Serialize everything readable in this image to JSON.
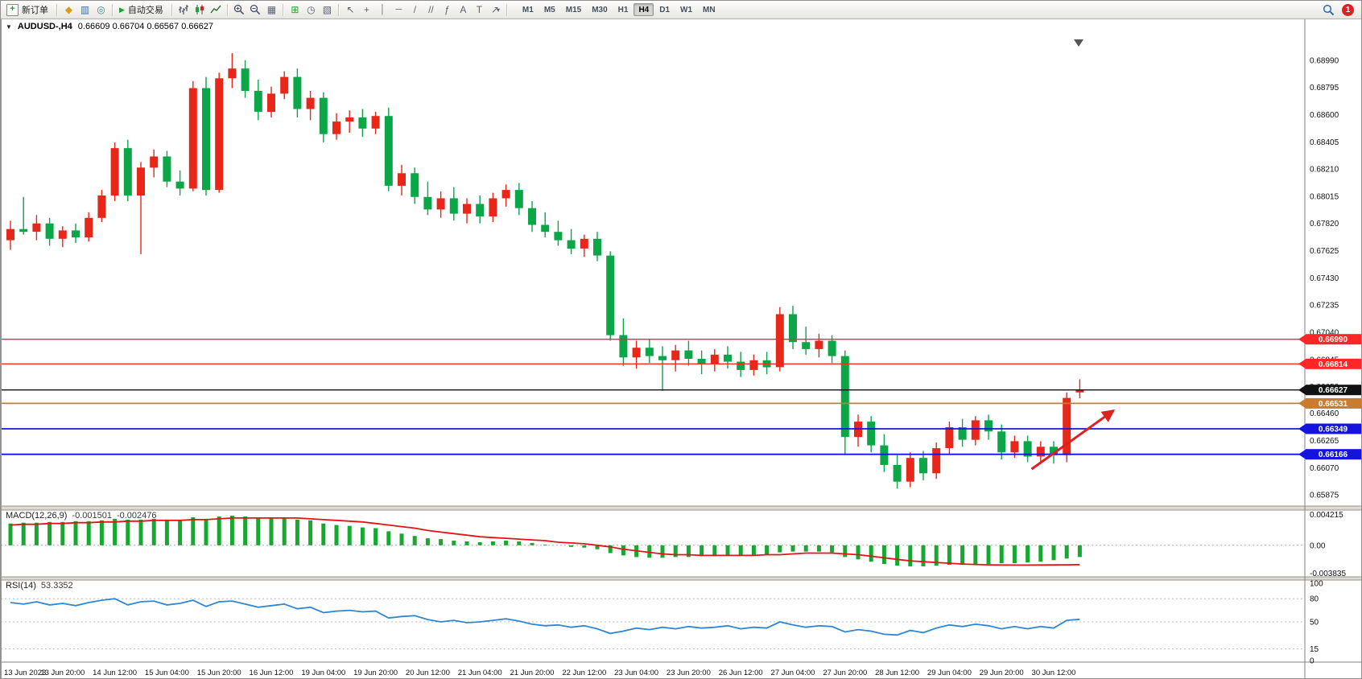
{
  "toolbar": {
    "new_order_label": "新订单",
    "autotrading_label": "自动交易",
    "timeframes": [
      "M1",
      "M5",
      "M15",
      "M30",
      "H1",
      "H4",
      "D1",
      "W1",
      "MN"
    ],
    "active_timeframe": "H4",
    "notification_count": "1"
  },
  "chart": {
    "symbol_title": "AUDUSD-,H4",
    "ohlc_text": "0.66609 0.66704 0.66567 0.66627"
  },
  "chart_data": {
    "type": "candlestick",
    "symbol": "AUDUSD-",
    "timeframe": "H4",
    "current_bar": {
      "open": 0.66609,
      "high": 0.66704,
      "low": 0.66567,
      "close": 0.66627
    },
    "bull_color": "#E8271B",
    "bear_color": "#0AA648",
    "price_axis": {
      "range": [
        0.6583,
        0.6915
      ],
      "labels": [
        "0.68990",
        "0.68795",
        "0.68600",
        "0.68405",
        "0.68210",
        "0.68015",
        "0.67820",
        "0.67625",
        "0.67430",
        "0.67235",
        "0.67040",
        "0.66845",
        "0.66650",
        "0.66460",
        "0.66265",
        "0.66070",
        "0.65875"
      ]
    },
    "time_labels": [
      "13 Jun 2023",
      "13 Jun 20:00",
      "14 Jun 12:00",
      "15 Jun 04:00",
      "15 Jun 20:00",
      "16 Jun 12:00",
      "19 Jun 04:00",
      "19 Jun 20:00",
      "20 Jun 12:00",
      "21 Jun 04:00",
      "21 Jun 20:00",
      "22 Jun 12:00",
      "23 Jun 04:00",
      "23 Jun 20:00",
      "26 Jun 12:00",
      "27 Jun 04:00",
      "27 Jun 20:00",
      "28 Jun 12:00",
      "29 Jun 04:00",
      "29 Jun 20:00",
      "30 Jun 12:00"
    ],
    "candles": [
      [
        0.677,
        0.6784,
        0.6763,
        0.6778
      ],
      [
        0.6778,
        0.6801,
        0.6774,
        0.6776
      ],
      [
        0.6776,
        0.6788,
        0.677,
        0.6782
      ],
      [
        0.6782,
        0.6786,
        0.6766,
        0.6771
      ],
      [
        0.6771,
        0.678,
        0.6765,
        0.6777
      ],
      [
        0.6777,
        0.6782,
        0.6768,
        0.6772
      ],
      [
        0.6772,
        0.679,
        0.6769,
        0.6786
      ],
      [
        0.6786,
        0.6806,
        0.6783,
        0.6802
      ],
      [
        0.6802,
        0.684,
        0.6798,
        0.6836
      ],
      [
        0.6836,
        0.6842,
        0.6798,
        0.6802
      ],
      [
        0.6802,
        0.6826,
        0.676,
        0.6822
      ],
      [
        0.6822,
        0.6835,
        0.6815,
        0.683
      ],
      [
        0.683,
        0.6834,
        0.6808,
        0.6812
      ],
      [
        0.6812,
        0.682,
        0.6802,
        0.6807
      ],
      [
        0.6807,
        0.6884,
        0.6805,
        0.6879
      ],
      [
        0.6879,
        0.6887,
        0.6802,
        0.6806
      ],
      [
        0.6806,
        0.689,
        0.6804,
        0.6886
      ],
      [
        0.6886,
        0.6904,
        0.6879,
        0.6893
      ],
      [
        0.6893,
        0.6899,
        0.6872,
        0.6877
      ],
      [
        0.6877,
        0.6885,
        0.6856,
        0.6862
      ],
      [
        0.6862,
        0.688,
        0.6858,
        0.6875
      ],
      [
        0.6875,
        0.6891,
        0.6871,
        0.6887
      ],
      [
        0.6887,
        0.6893,
        0.6858,
        0.6864
      ],
      [
        0.6864,
        0.6877,
        0.6856,
        0.6872
      ],
      [
        0.6872,
        0.6876,
        0.684,
        0.6846
      ],
      [
        0.6846,
        0.6861,
        0.6842,
        0.6855
      ],
      [
        0.6855,
        0.6863,
        0.6847,
        0.6858
      ],
      [
        0.6858,
        0.6864,
        0.6844,
        0.685
      ],
      [
        0.685,
        0.6862,
        0.6846,
        0.6859
      ],
      [
        0.6859,
        0.6865,
        0.6805,
        0.6809
      ],
      [
        0.6809,
        0.6824,
        0.6802,
        0.6818
      ],
      [
        0.6818,
        0.6822,
        0.6796,
        0.6801
      ],
      [
        0.6801,
        0.6812,
        0.6788,
        0.6792
      ],
      [
        0.6792,
        0.6805,
        0.6786,
        0.68
      ],
      [
        0.68,
        0.6808,
        0.6784,
        0.6789
      ],
      [
        0.6789,
        0.68,
        0.6782,
        0.6796
      ],
      [
        0.6796,
        0.6802,
        0.6782,
        0.6787
      ],
      [
        0.6787,
        0.6804,
        0.6783,
        0.68
      ],
      [
        0.68,
        0.681,
        0.6794,
        0.6806
      ],
      [
        0.6806,
        0.6811,
        0.6788,
        0.6793
      ],
      [
        0.6793,
        0.6798,
        0.6776,
        0.6781
      ],
      [
        0.6781,
        0.679,
        0.6772,
        0.6776
      ],
      [
        0.6776,
        0.6784,
        0.6766,
        0.677
      ],
      [
        0.677,
        0.6778,
        0.676,
        0.6764
      ],
      [
        0.6764,
        0.6774,
        0.6758,
        0.6771
      ],
      [
        0.6771,
        0.6776,
        0.6755,
        0.6759
      ],
      [
        0.6759,
        0.6762,
        0.6698,
        0.6702
      ],
      [
        0.6702,
        0.6714,
        0.668,
        0.6686
      ],
      [
        0.6686,
        0.6698,
        0.6678,
        0.6693
      ],
      [
        0.6693,
        0.6699,
        0.6682,
        0.6687
      ],
      [
        0.6687,
        0.6694,
        0.6662,
        0.6684
      ],
      [
        0.6684,
        0.6695,
        0.6676,
        0.6691
      ],
      [
        0.6691,
        0.6698,
        0.668,
        0.6685
      ],
      [
        0.6685,
        0.6691,
        0.6674,
        0.6681
      ],
      [
        0.6681,
        0.6692,
        0.6676,
        0.6688
      ],
      [
        0.6688,
        0.6694,
        0.6678,
        0.6683
      ],
      [
        0.6683,
        0.669,
        0.6672,
        0.6677
      ],
      [
        0.6677,
        0.6688,
        0.6673,
        0.6684
      ],
      [
        0.6684,
        0.669,
        0.6674,
        0.6679
      ],
      [
        0.6679,
        0.6722,
        0.6676,
        0.6717
      ],
      [
        0.6717,
        0.6723,
        0.6692,
        0.6697
      ],
      [
        0.6697,
        0.6708,
        0.6688,
        0.6692
      ],
      [
        0.6692,
        0.6703,
        0.6686,
        0.6698
      ],
      [
        0.6698,
        0.6702,
        0.6682,
        0.6687
      ],
      [
        0.6687,
        0.6691,
        0.6616,
        0.6629
      ],
      [
        0.6629,
        0.6645,
        0.6622,
        0.664
      ],
      [
        0.664,
        0.6644,
        0.6618,
        0.6623
      ],
      [
        0.6623,
        0.6631,
        0.6604,
        0.6609
      ],
      [
        0.6609,
        0.6616,
        0.6592,
        0.6597
      ],
      [
        0.6597,
        0.6618,
        0.6593,
        0.6614
      ],
      [
        0.6614,
        0.6619,
        0.6598,
        0.6603
      ],
      [
        0.6603,
        0.6625,
        0.6599,
        0.6621
      ],
      [
        0.6621,
        0.664,
        0.6617,
        0.6636
      ],
      [
        0.6636,
        0.6642,
        0.6622,
        0.6627
      ],
      [
        0.6627,
        0.6644,
        0.6623,
        0.6641
      ],
      [
        0.6641,
        0.6645,
        0.6627,
        0.6633
      ],
      [
        0.6633,
        0.6638,
        0.6613,
        0.6618
      ],
      [
        0.6618,
        0.663,
        0.6614,
        0.6626
      ],
      [
        0.6626,
        0.663,
        0.6611,
        0.6615
      ],
      [
        0.6615,
        0.6626,
        0.661,
        0.6622
      ],
      [
        0.6622,
        0.6626,
        0.661,
        0.6616
      ],
      [
        0.6616,
        0.6661,
        0.6611,
        0.6657
      ],
      [
        0.66609,
        0.66704,
        0.66567,
        0.66627
      ]
    ],
    "hlines": [
      {
        "price": 0.6699,
        "label": "0.66990",
        "color": "#FF2626",
        "width": 1.4
      },
      {
        "price": 0.66814,
        "label": "0.66814",
        "color": "#FF2626",
        "width": 1.4
      },
      {
        "price": 0.66627,
        "label": "0.66627",
        "color": "#111111",
        "width": 1.4
      },
      {
        "price": 0.66531,
        "label": "0.66531",
        "color": "#C97C2F",
        "width": 1.8
      },
      {
        "price": 0.66349,
        "label": "0.66349",
        "color": "#1414E0",
        "width": 1.8
      },
      {
        "price": 0.66166,
        "label": "0.66166",
        "color": "#1414E0",
        "width": 1.8
      }
    ],
    "arrow": {
      "from_bar": 78.3,
      "from_price": 0.6606,
      "to_bar": 84.6,
      "to_price": 0.6648,
      "color": "#E02020"
    },
    "macd": {
      "label": "MACD(12,26,9)",
      "main_value": "-0.001501",
      "signal_value": "-0.002476",
      "range": [
        -0.003835,
        0.004215
      ],
      "axis_labels": [
        "0.004215",
        "0.00",
        "-0.003835"
      ],
      "hist_color": "#17A82F",
      "signal_color": "#E01616",
      "histogram": [
        0.0028,
        0.0029,
        0.0029,
        0.003,
        0.003,
        0.0031,
        0.0031,
        0.0032,
        0.0034,
        0.0033,
        0.0033,
        0.0034,
        0.0033,
        0.0032,
        0.0036,
        0.0034,
        0.0037,
        0.0038,
        0.0037,
        0.0035,
        0.0035,
        0.0036,
        0.0033,
        0.0032,
        0.0028,
        0.0026,
        0.0025,
        0.0023,
        0.0022,
        0.0018,
        0.0015,
        0.0012,
        0.0009,
        0.0008,
        0.0006,
        0.0005,
        0.0004,
        0.0005,
        0.0006,
        0.0005,
        0.0003,
        0.0001,
        0.0,
        -0.0002,
        -0.0003,
        -0.0005,
        -0.001,
        -0.0013,
        -0.0015,
        -0.0016,
        -0.0016,
        -0.0015,
        -0.0015,
        -0.0014,
        -0.0014,
        -0.0013,
        -0.0013,
        -0.0012,
        -0.0012,
        -0.0009,
        -0.0008,
        -0.0008,
        -0.0008,
        -0.0009,
        -0.0015,
        -0.0018,
        -0.0021,
        -0.0024,
        -0.0026,
        -0.0027,
        -0.0027,
        -0.0026,
        -0.0025,
        -0.0025,
        -0.0024,
        -0.0024,
        -0.0023,
        -0.0023,
        -0.0022,
        -0.0021,
        -0.0019,
        -0.0017,
        -0.001501
      ],
      "signal": [
        0.0026,
        0.0027,
        0.0027,
        0.0028,
        0.0028,
        0.0029,
        0.0029,
        0.003,
        0.003,
        0.0031,
        0.0031,
        0.0032,
        0.0032,
        0.0032,
        0.0033,
        0.0033,
        0.0034,
        0.0035,
        0.0035,
        0.0035,
        0.0035,
        0.0035,
        0.0035,
        0.0034,
        0.0033,
        0.0032,
        0.0031,
        0.003,
        0.0028,
        0.0026,
        0.0024,
        0.0022,
        0.0019,
        0.0017,
        0.0015,
        0.0013,
        0.0011,
        0.001,
        0.0009,
        0.0008,
        0.0007,
        0.0006,
        0.0004,
        0.0003,
        0.0002,
        0.0,
        -0.0002,
        -0.0005,
        -0.0007,
        -0.0009,
        -0.0011,
        -0.0012,
        -0.0012,
        -0.0013,
        -0.0013,
        -0.0013,
        -0.0013,
        -0.0013,
        -0.0012,
        -0.0012,
        -0.0011,
        -0.001,
        -0.001,
        -0.001,
        -0.0011,
        -0.0012,
        -0.0014,
        -0.0016,
        -0.0018,
        -0.002,
        -0.0021,
        -0.0022,
        -0.0023,
        -0.0024,
        -0.00245,
        -0.0025,
        -0.00252,
        -0.00253,
        -0.00253,
        -0.00252,
        -0.00251,
        -0.0025,
        -0.002476
      ]
    },
    "rsi": {
      "label": "RSI(14)",
      "value": "53.3352",
      "range": [
        0,
        100
      ],
      "levels": [
        80,
        50,
        15
      ],
      "axis_labels": [
        "100",
        "80",
        "50",
        "15",
        "0"
      ],
      "color": "#2E86D5",
      "values": [
        75,
        73,
        76,
        72,
        74,
        71,
        75,
        78,
        80,
        72,
        76,
        77,
        72,
        74,
        78,
        70,
        76,
        77,
        73,
        69,
        71,
        73,
        67,
        69,
        62,
        64,
        65,
        63,
        64,
        55,
        57,
        58,
        53,
        50,
        52,
        49,
        50,
        52,
        54,
        51,
        47,
        45,
        46,
        43,
        45,
        41,
        35,
        38,
        42,
        40,
        43,
        41,
        44,
        42,
        43,
        45,
        41,
        43,
        42,
        50,
        46,
        43,
        45,
        44,
        37,
        40,
        38,
        34,
        33,
        39,
        36,
        42,
        46,
        44,
        47,
        45,
        41,
        44,
        41,
        44,
        42,
        52,
        53.3
      ]
    }
  }
}
